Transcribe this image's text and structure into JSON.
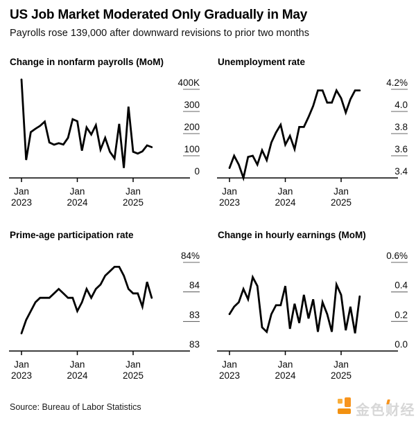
{
  "header": {
    "title": "US Job Market Moderated Only Gradually in May",
    "subtitle": "Payrolls rose 139,000 after downward revisions to prior two months"
  },
  "footer": {
    "source": "Source: Bureau of Labor Statistics",
    "logo_text": "金色财经"
  },
  "colors": {
    "line": "#000000",
    "axis": "#000000",
    "tick_dash": "#666666",
    "logo_orange": "#f7941e",
    "logo_text_gray": "#d7d7d7"
  },
  "chart_data": [
    {
      "type": "line",
      "title": "Change in nonfarm payrolls (MoM)",
      "legend_position": "none",
      "grid": "off",
      "ylim": [
        0,
        400
      ],
      "y_ticks": [
        {
          "value": 400,
          "label": "400K"
        },
        {
          "value": 300,
          "label": "300"
        },
        {
          "value": 200,
          "label": "200"
        },
        {
          "value": 100,
          "label": "100"
        },
        {
          "value": 0,
          "label": "0"
        }
      ],
      "x_ticks": [
        {
          "month": 0,
          "line1": "Jan",
          "line2": "2023"
        },
        {
          "month": 12,
          "line1": "Jan",
          "line2": "2024"
        },
        {
          "month": 24,
          "line1": "Jan",
          "line2": "2025"
        }
      ],
      "values": [
        444,
        81,
        207,
        222,
        235,
        254,
        160,
        150,
        157,
        151,
        181,
        265,
        256,
        123,
        228,
        196,
        238,
        128,
        181,
        118,
        88,
        244,
        45,
        322,
        118,
        110,
        120,
        147,
        139
      ]
    },
    {
      "type": "line",
      "title": "Unemployment rate",
      "legend_position": "none",
      "grid": "off",
      "ylim": [
        3.4,
        4.2
      ],
      "y_ticks": [
        {
          "value": 4.2,
          "label": "4.2%"
        },
        {
          "value": 4.0,
          "label": "4.0"
        },
        {
          "value": 3.8,
          "label": "3.8"
        },
        {
          "value": 3.6,
          "label": "3.6"
        },
        {
          "value": 3.4,
          "label": "3.4"
        }
      ],
      "x_ticks": [
        {
          "month": 0,
          "line1": "Jan",
          "line2": "2023"
        },
        {
          "month": 12,
          "line1": "Jan",
          "line2": "2024"
        },
        {
          "month": 24,
          "line1": "Jan",
          "line2": "2025"
        }
      ],
      "values": [
        3.49,
        3.6,
        3.52,
        3.4,
        3.59,
        3.6,
        3.52,
        3.65,
        3.56,
        3.72,
        3.81,
        3.88,
        3.7,
        3.78,
        3.66,
        3.86,
        3.86,
        3.95,
        4.05,
        4.19,
        4.19,
        4.08,
        4.08,
        4.19,
        4.12,
        3.99,
        4.11,
        4.19,
        4.19
      ]
    },
    {
      "type": "line",
      "title": "Prime-age participation rate",
      "legend_position": "none",
      "grid": "off",
      "ylim": [
        83.0,
        84.0
      ],
      "y_ticks": [
        {
          "value": 84.0,
          "label": "84%"
        },
        {
          "value": 83.667,
          "label": "84"
        },
        {
          "value": 83.333,
          "label": "83"
        },
        {
          "value": 83.0,
          "label": "83"
        }
      ],
      "x_ticks": [
        {
          "month": 0,
          "line1": "Jan",
          "line2": "2023"
        },
        {
          "month": 12,
          "line1": "Jan",
          "line2": "2024"
        },
        {
          "month": 24,
          "line1": "Jan",
          "line2": "2025"
        }
      ],
      "values": [
        83.2,
        83.35,
        83.45,
        83.55,
        83.6,
        83.6,
        83.6,
        83.65,
        83.7,
        83.65,
        83.6,
        83.6,
        83.45,
        83.55,
        83.7,
        83.6,
        83.7,
        83.75,
        83.85,
        83.9,
        83.95,
        83.95,
        83.85,
        83.7,
        83.65,
        83.65,
        83.5,
        83.78,
        83.6
      ]
    },
    {
      "type": "line",
      "title": "Change in hourly earnings (MoM)",
      "legend_position": "none",
      "grid": "off",
      "ylim": [
        0.0,
        0.6
      ],
      "y_ticks": [
        {
          "value": 0.6,
          "label": "0.6%"
        },
        {
          "value": 0.4,
          "label": "0.4"
        },
        {
          "value": 0.2,
          "label": "0.2"
        },
        {
          "value": 0.0,
          "label": "0.0"
        }
      ],
      "x_ticks": [
        {
          "month": 0,
          "line1": "Jan",
          "line2": "2023"
        },
        {
          "month": 12,
          "line1": "Jan",
          "line2": "2024"
        },
        {
          "month": 24,
          "line1": "Jan",
          "line2": "2025"
        }
      ],
      "values": [
        0.25,
        0.3,
        0.33,
        0.42,
        0.35,
        0.5,
        0.44,
        0.16,
        0.13,
        0.25,
        0.31,
        0.31,
        0.44,
        0.15,
        0.32,
        0.19,
        0.38,
        0.22,
        0.35,
        0.13,
        0.33,
        0.25,
        0.13,
        0.45,
        0.38,
        0.14,
        0.3,
        0.12,
        0.37
      ]
    }
  ]
}
